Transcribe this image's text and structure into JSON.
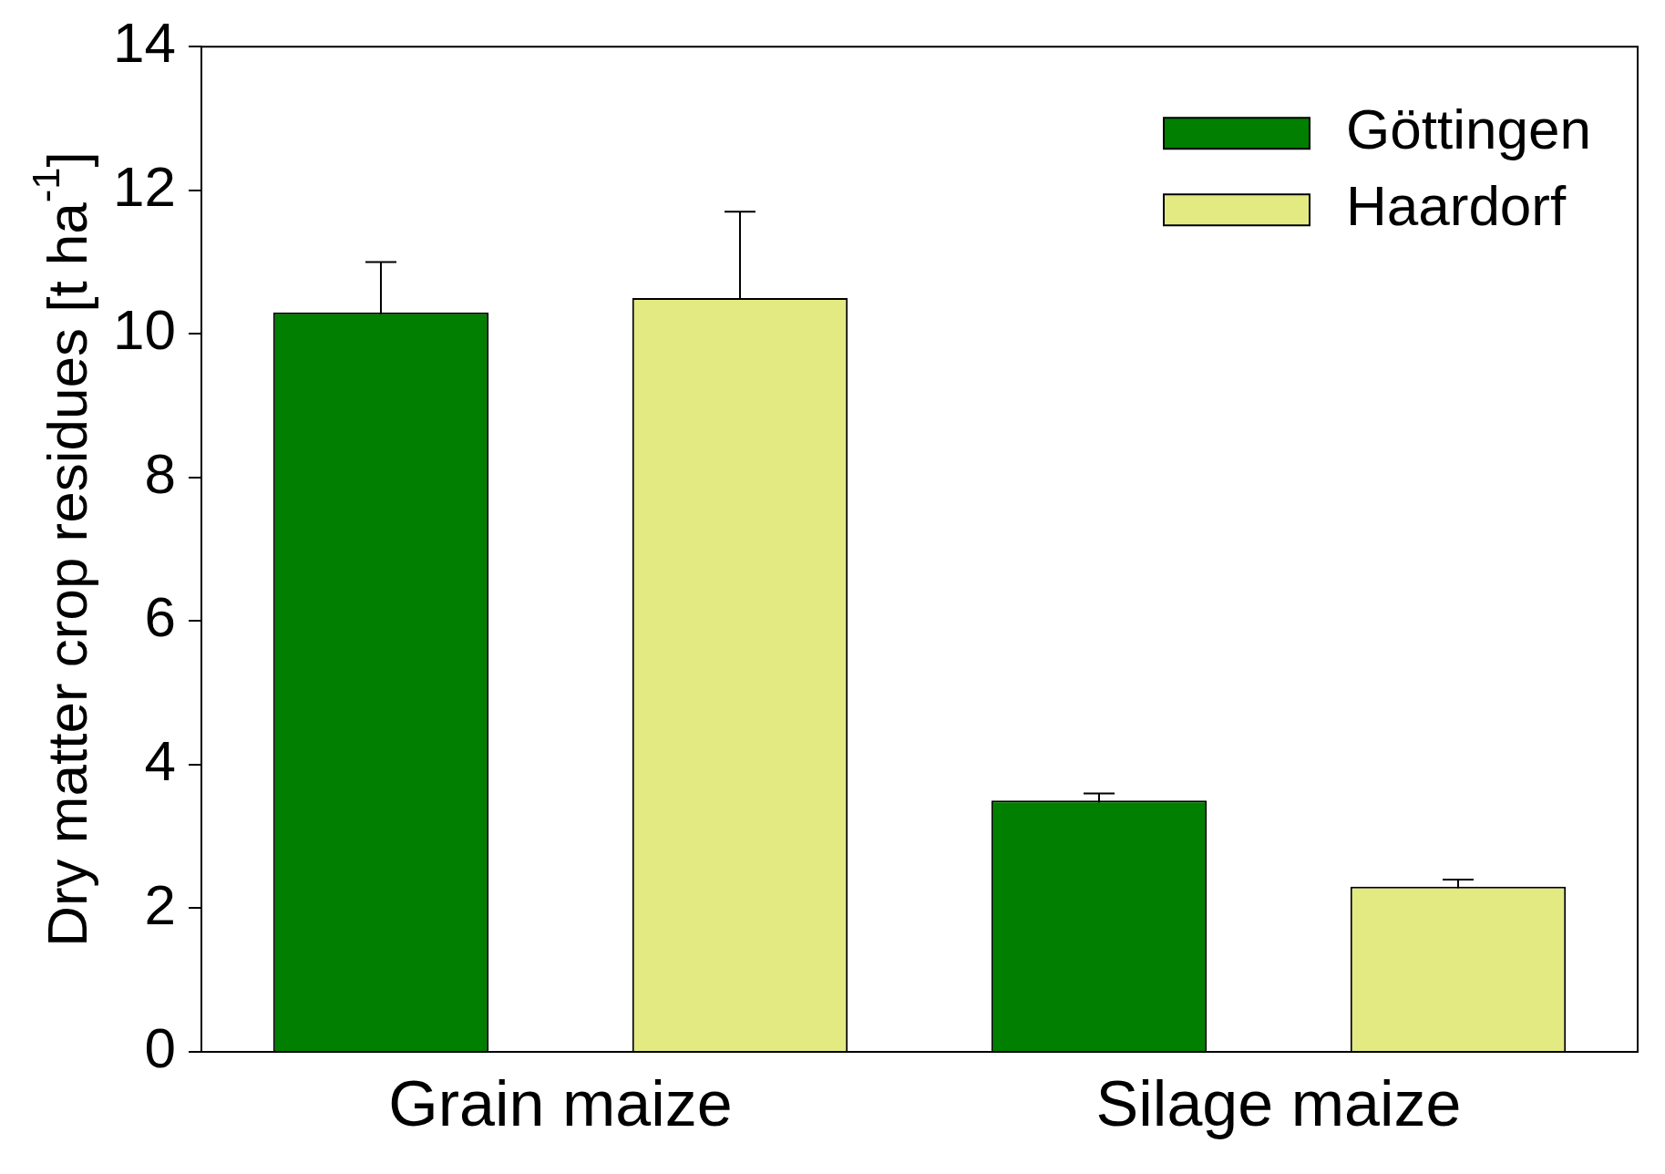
{
  "chart_data": {
    "type": "bar",
    "ylabel": "Dry matter crop residues [t ha$^{-1}$]",
    "categories": [
      "Grain maize",
      "Silage maize"
    ],
    "series": [
      {
        "name": "Göttingen",
        "color": "#007f00",
        "values": [
          10.3,
          3.5
        ],
        "errors": [
          0.7,
          0.1
        ]
      },
      {
        "name": "Haardorf",
        "color": "#e3ea82",
        "values": [
          10.5,
          2.3
        ],
        "errors": [
          1.2,
          0.1
        ]
      }
    ],
    "ylim": [
      0,
      14
    ],
    "yticks": [
      0,
      2,
      4,
      6,
      8,
      10,
      12,
      14
    ],
    "grid": false,
    "legend": "top right"
  }
}
